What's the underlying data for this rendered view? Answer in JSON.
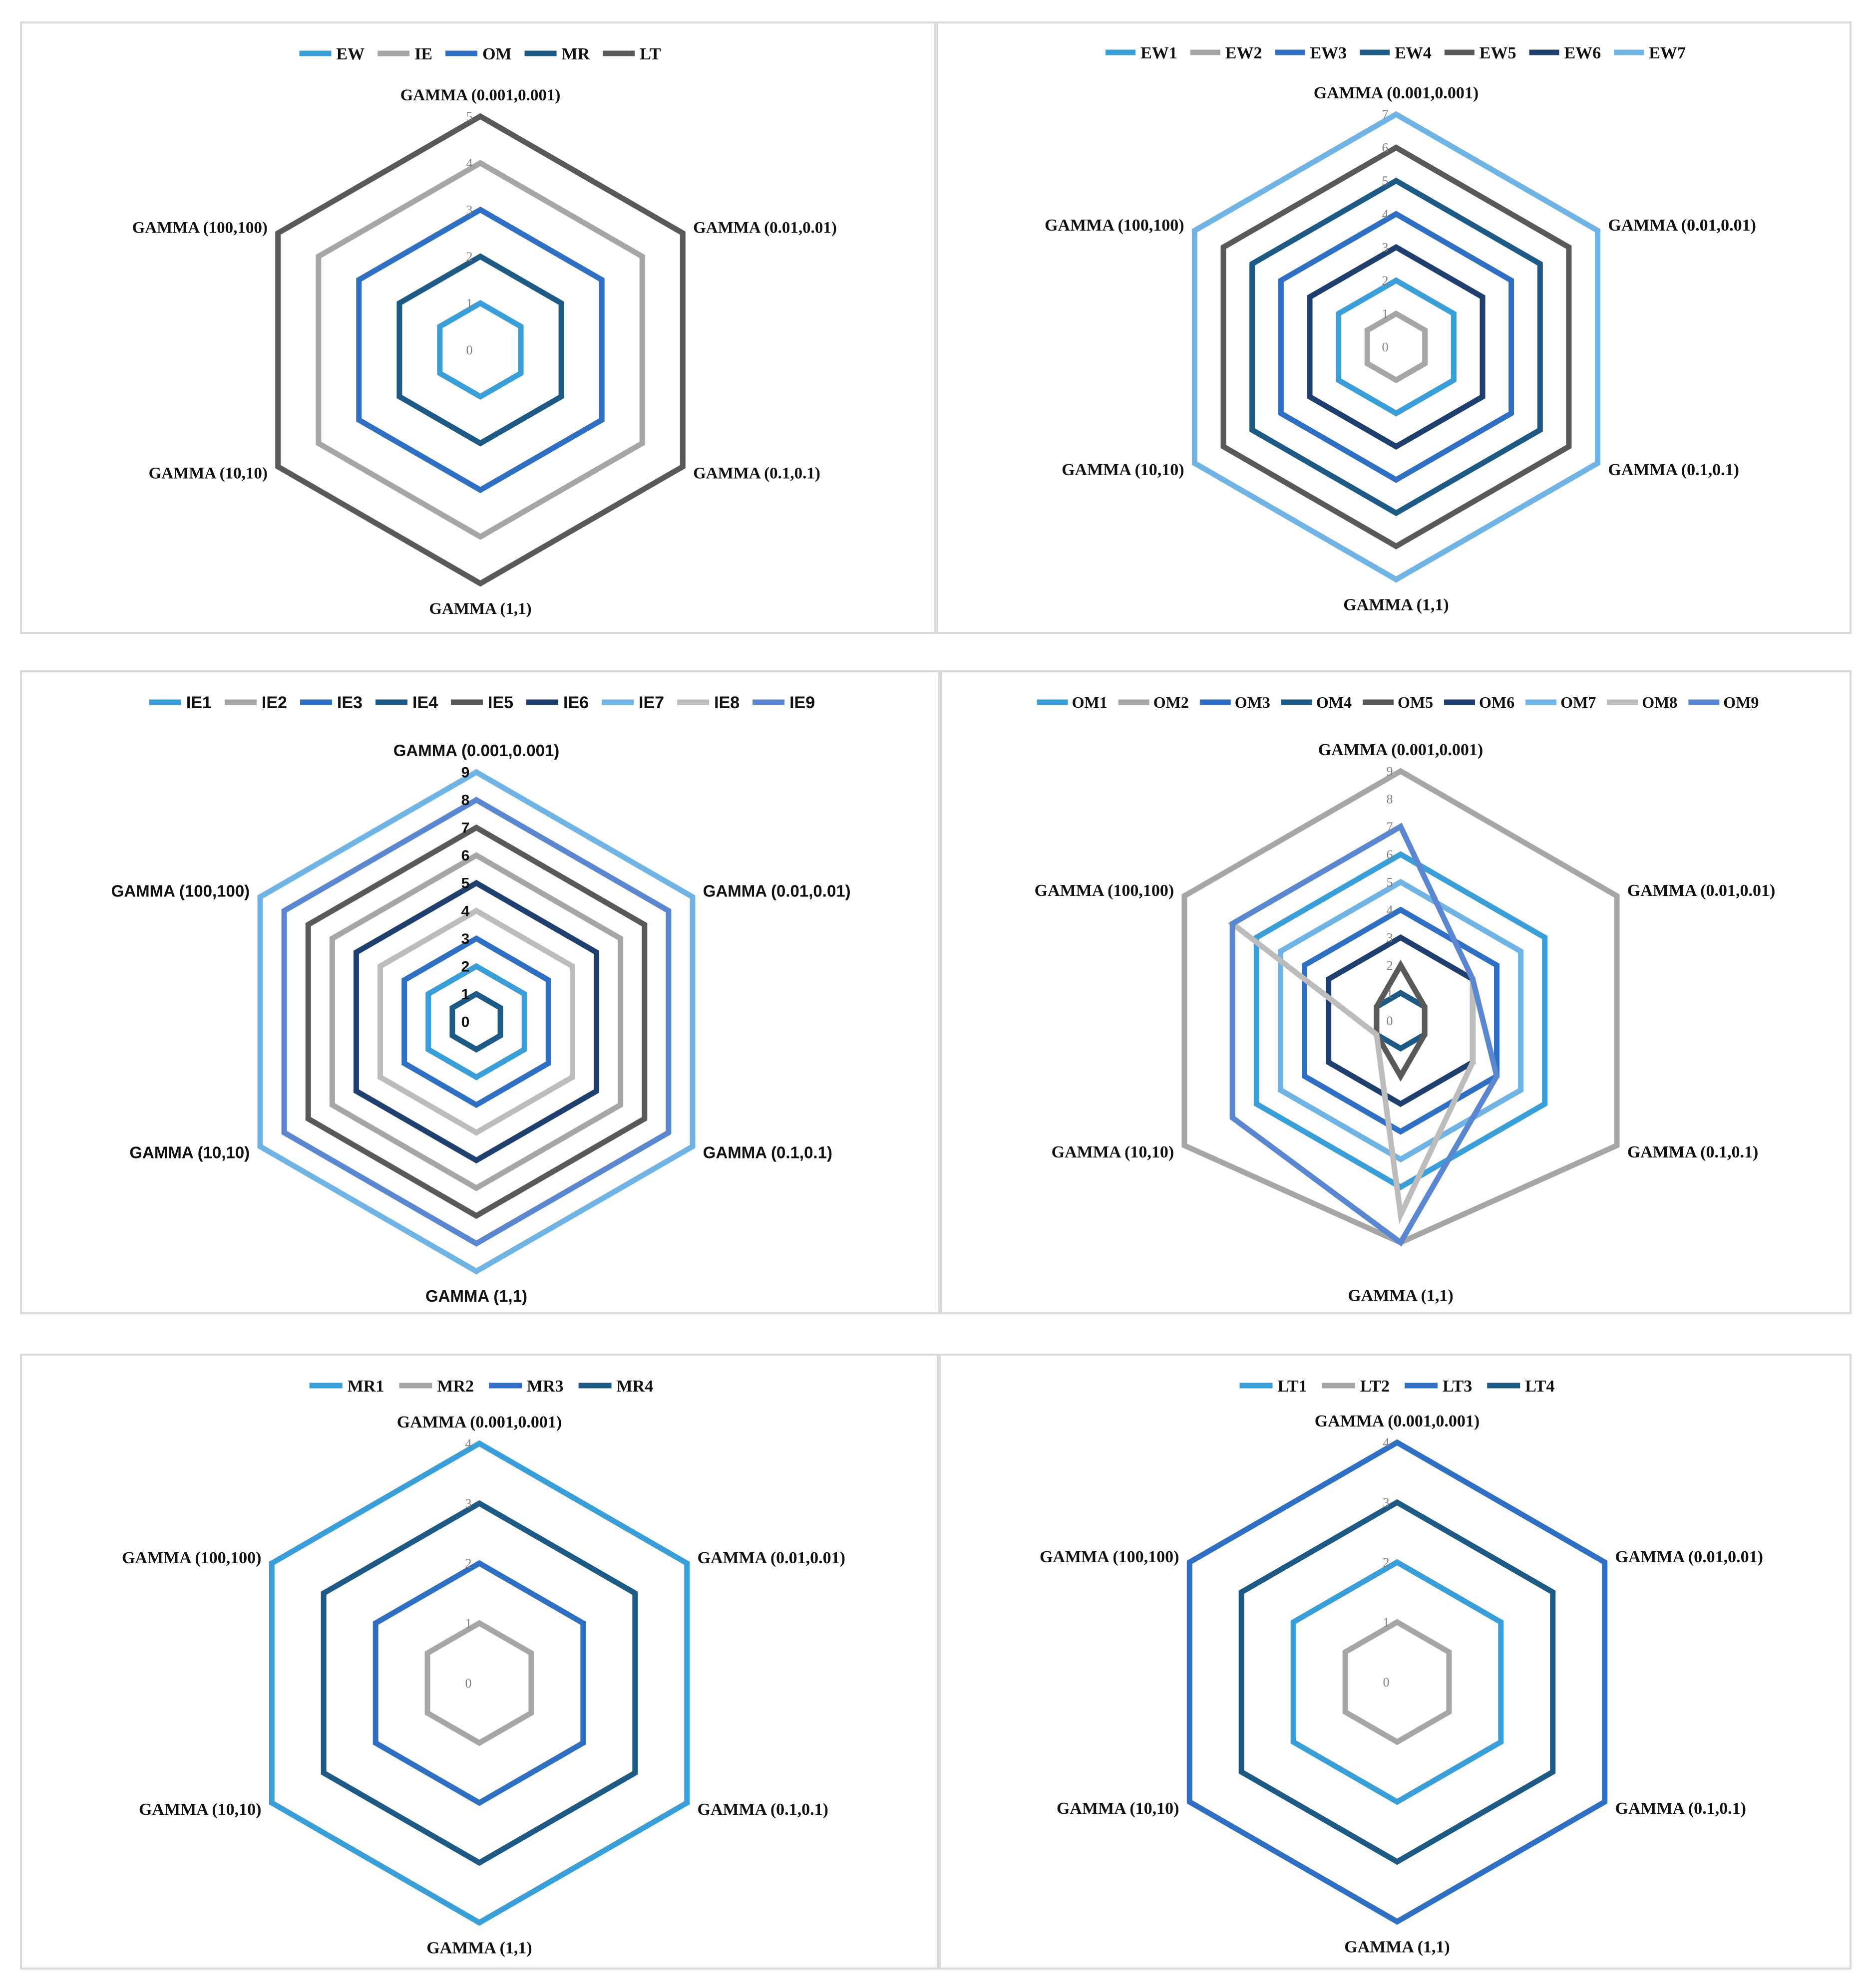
{
  "colors": {
    "light_blue": "#3a9fd8",
    "gray": "#a6a6a6",
    "mid_blue": "#2f6fc4",
    "dark_teal": "#1d5a86",
    "dark_gray": "#595959",
    "navy": "#1f3f6e",
    "sky": "#6fb4e4",
    "light_gray": "#bcbcbc",
    "periwinkle": "#5b86d0"
  },
  "chart_data": [
    {
      "type": "radar",
      "categories": [
        "GAMMA (0.001,0.001)",
        "GAMMA (0.01,0.01)",
        "GAMMA (0.1,0.1)",
        "GAMMA (1,1)",
        "GAMMA (10,10)",
        "GAMMA (100,100)"
      ],
      "ticks": [
        "0",
        "1",
        "2",
        "3",
        "4",
        "5"
      ],
      "rmax": 5,
      "series": [
        {
          "name": "EW",
          "color": "#3a9fd8",
          "values": [
            1,
            1,
            1,
            1,
            1,
            1
          ]
        },
        {
          "name": "IE",
          "color": "#a6a6a6",
          "values": [
            4,
            4,
            4,
            4,
            4,
            4
          ]
        },
        {
          "name": "OM",
          "color": "#2f6fc4",
          "values": [
            3,
            3,
            3,
            3,
            3,
            3
          ]
        },
        {
          "name": "MR",
          "color": "#1d5a86",
          "values": [
            2,
            2,
            2,
            2,
            2,
            2
          ]
        },
        {
          "name": "LT",
          "color": "#595959",
          "values": [
            5,
            5,
            5,
            5,
            5,
            5
          ]
        }
      ]
    },
    {
      "type": "radar",
      "categories": [
        "GAMMA (0.001,0.001)",
        "GAMMA (0.01,0.01)",
        "GAMMA (0.1,0.1)",
        "GAMMA (1,1)",
        "GAMMA (10,10)",
        "GAMMA (100,100)"
      ],
      "ticks": [
        "0",
        "1",
        "2",
        "3",
        "4",
        "5",
        "6",
        "7"
      ],
      "rmax": 7,
      "series": [
        {
          "name": "EW1",
          "color": "#3a9fd8",
          "values": [
            2,
            2,
            2,
            2,
            2,
            2
          ]
        },
        {
          "name": "EW2",
          "color": "#a6a6a6",
          "values": [
            1,
            1,
            1,
            1,
            1,
            1
          ]
        },
        {
          "name": "EW3",
          "color": "#2f6fc4",
          "values": [
            4,
            4,
            4,
            4,
            4,
            4
          ]
        },
        {
          "name": "EW4",
          "color": "#1d5a86",
          "values": [
            5,
            5,
            5,
            5,
            5,
            5
          ]
        },
        {
          "name": "EW5",
          "color": "#595959",
          "values": [
            6,
            6,
            6,
            6,
            6,
            6
          ]
        },
        {
          "name": "EW6",
          "color": "#1f3f6e",
          "values": [
            3,
            3,
            3,
            3,
            3,
            3
          ]
        },
        {
          "name": "EW7",
          "color": "#6fb4e4",
          "values": [
            7,
            7,
            7,
            7,
            7,
            7
          ]
        }
      ]
    },
    {
      "type": "radar",
      "categories": [
        "GAMMA (0.001,0.001)",
        "GAMMA (0.01,0.01)",
        "GAMMA (0.1,0.1)",
        "GAMMA (1,1)",
        "GAMMA (10,10)",
        "GAMMA (100,100)"
      ],
      "ticks": [
        "0",
        "1",
        "2",
        "3",
        "4",
        "5",
        "6",
        "7",
        "8",
        "9"
      ],
      "rmax": 9,
      "series": [
        {
          "name": "IE1",
          "color": "#3a9fd8",
          "values": [
            2,
            2,
            2,
            2,
            2,
            2
          ]
        },
        {
          "name": "IE2",
          "color": "#a6a6a6",
          "values": [
            6,
            6,
            6,
            6,
            6,
            6
          ]
        },
        {
          "name": "IE3",
          "color": "#2f6fc4",
          "values": [
            3,
            3,
            3,
            3,
            3,
            3
          ]
        },
        {
          "name": "IE4",
          "color": "#1d5a86",
          "values": [
            1,
            1,
            1,
            1,
            1,
            1
          ]
        },
        {
          "name": "IE5",
          "color": "#595959",
          "values": [
            7,
            7,
            7,
            7,
            7,
            7
          ]
        },
        {
          "name": "IE6",
          "color": "#1f3f6e",
          "values": [
            5,
            5,
            5,
            5,
            5,
            5
          ]
        },
        {
          "name": "IE7",
          "color": "#6fb4e4",
          "values": [
            9,
            9,
            9,
            9,
            9,
            9
          ]
        },
        {
          "name": "IE8",
          "color": "#bcbcbc",
          "values": [
            4,
            4,
            4,
            4,
            4,
            4
          ]
        },
        {
          "name": "IE9",
          "color": "#5b86d0",
          "values": [
            8,
            8,
            8,
            8,
            8,
            8
          ]
        }
      ]
    },
    {
      "type": "radar",
      "categories": [
        "GAMMA (0.001,0.001)",
        "GAMMA (0.01,0.01)",
        "GAMMA (0.1,0.1)",
        "GAMMA (1,1)",
        "GAMMA (10,10)",
        "GAMMA (100,100)"
      ],
      "ticks": [
        "0",
        "1",
        "2",
        "3",
        "4",
        "5",
        "6",
        "7",
        "8",
        "9"
      ],
      "rmax": 9,
      "series": [
        {
          "name": "OM1",
          "color": "#3a9fd8",
          "values": [
            6,
            6,
            6,
            6,
            6,
            6
          ]
        },
        {
          "name": "OM2",
          "color": "#a6a6a6",
          "values": [
            9,
            9,
            9,
            8,
            9,
            9
          ]
        },
        {
          "name": "OM3",
          "color": "#2f6fc4",
          "values": [
            4,
            4,
            4,
            4,
            4,
            4
          ]
        },
        {
          "name": "OM4",
          "color": "#1d5a86",
          "values": [
            1,
            1,
            1,
            1,
            1,
            1
          ]
        },
        {
          "name": "OM5",
          "color": "#595959",
          "values": [
            2,
            1,
            1,
            2,
            1,
            1
          ]
        },
        {
          "name": "OM6",
          "color": "#1f3f6e",
          "values": [
            3,
            3,
            3,
            3,
            3,
            3
          ]
        },
        {
          "name": "OM7",
          "color": "#6fb4e4",
          "values": [
            5,
            5,
            5,
            5,
            5,
            5
          ]
        },
        {
          "name": "OM8",
          "color": "#bcbcbc",
          "values": [
            7,
            3,
            3,
            7,
            1,
            7
          ]
        },
        {
          "name": "OM9",
          "color": "#5b86d0",
          "values": [
            7,
            3,
            4,
            8,
            7,
            7
          ]
        }
      ]
    },
    {
      "type": "radar",
      "categories": [
        "GAMMA (0.001,0.001)",
        "GAMMA (0.01,0.01)",
        "GAMMA (0.1,0.1)",
        "GAMMA (1,1)",
        "GAMMA (10,10)",
        "GAMMA (100,100)"
      ],
      "ticks": [
        "0",
        "1",
        "2",
        "3",
        "4"
      ],
      "rmax": 4,
      "series": [
        {
          "name": "MR1",
          "color": "#3a9fd8",
          "values": [
            4,
            4,
            4,
            4,
            4,
            4
          ]
        },
        {
          "name": "MR2",
          "color": "#a6a6a6",
          "values": [
            1,
            1,
            1,
            1,
            1,
            1
          ]
        },
        {
          "name": "MR3",
          "color": "#2f6fc4",
          "values": [
            2,
            2,
            2,
            2,
            2,
            2
          ]
        },
        {
          "name": "MR4",
          "color": "#1d5a86",
          "values": [
            3,
            3,
            3,
            3,
            3,
            3
          ]
        }
      ]
    },
    {
      "type": "radar",
      "categories": [
        "GAMMA (0.001,0.001)",
        "GAMMA (0.01,0.01)",
        "GAMMA (0.1,0.1)",
        "GAMMA (1,1)",
        "GAMMA (10,10)",
        "GAMMA (100,100)"
      ],
      "ticks": [
        "0",
        "1",
        "2",
        "3",
        "4"
      ],
      "rmax": 4,
      "series": [
        {
          "name": "LT1",
          "color": "#3a9fd8",
          "values": [
            2,
            2,
            2,
            2,
            2,
            2
          ]
        },
        {
          "name": "LT2",
          "color": "#a6a6a6",
          "values": [
            1,
            1,
            1,
            1,
            1,
            1
          ]
        },
        {
          "name": "LT3",
          "color": "#2f6fc4",
          "values": [
            4,
            4,
            4,
            4,
            4,
            4
          ]
        },
        {
          "name": "LT4",
          "color": "#1d5a86",
          "values": [
            3,
            3,
            3,
            3,
            3,
            3
          ]
        }
      ]
    }
  ]
}
